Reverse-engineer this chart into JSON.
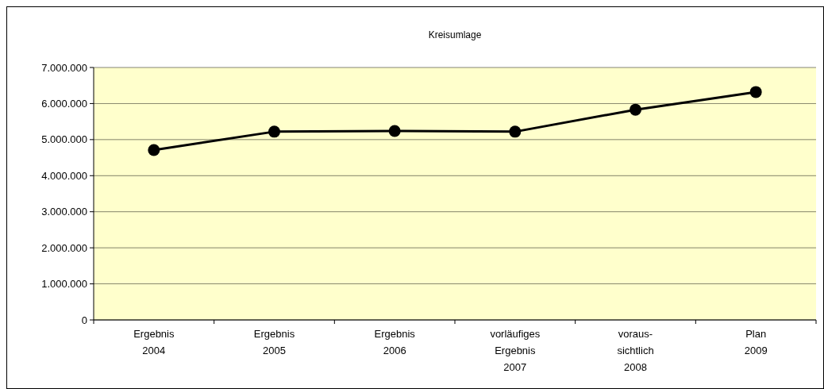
{
  "chart_data": {
    "type": "line",
    "title": "Kreisumlage",
    "categories": [
      "Ergebnis\n2004",
      "Ergebnis\n2005",
      "Ergebnis\n2006",
      "vorläufiges\nErgebnis\n2007",
      "voraus-\nsichtlich\n2008",
      "Plan\n2009"
    ],
    "series": [
      {
        "color": "#000000",
        "values": [
          4710000,
          5220000,
          5240000,
          5220000,
          5830000,
          6320000
        ]
      }
    ],
    "ylim": [
      0,
      7000000
    ],
    "yticks": [
      {
        "value": 0,
        "label": "0"
      },
      {
        "value": 1000000,
        "label": "1.000.000"
      },
      {
        "value": 2000000,
        "label": "2.000.000"
      },
      {
        "value": 3000000,
        "label": "3.000.000"
      },
      {
        "value": 4000000,
        "label": "4.000.000"
      },
      {
        "value": 5000000,
        "label": "5.000.000"
      },
      {
        "value": 6000000,
        "label": "6.000.000"
      },
      {
        "value": 7000000,
        "label": "7.000.000"
      }
    ],
    "grid": "y",
    "marker": "circle",
    "line_style": "solid"
  }
}
